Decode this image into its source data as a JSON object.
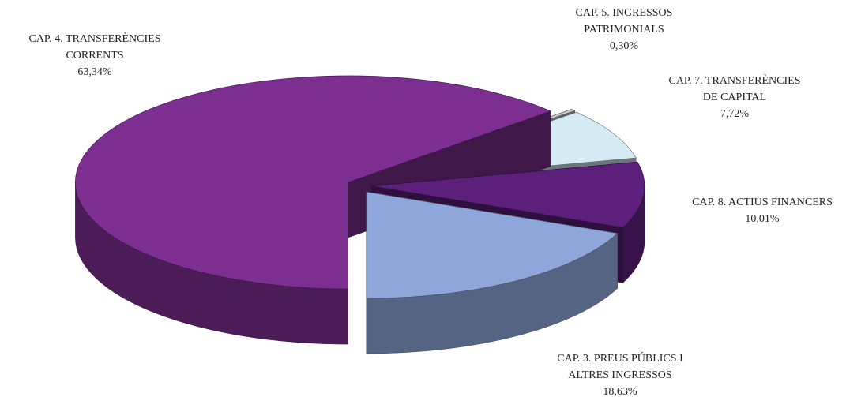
{
  "chart_data": {
    "type": "pie3d",
    "categories": [
      [
        "CAP. 4. TRANSFERÈNCIES",
        "CORRENTS"
      ],
      [
        "CAP. 5. INGRESSOS",
        "PATRIMONIALS"
      ],
      [
        "CAP. 7. TRANSFERÈNCIES",
        "DE CAPITAL"
      ],
      [
        "CAP. 8. ACTIUS FINANCERS"
      ],
      [
        "CAP. 3. PREUS PÚBLICS I",
        "ALTRES INGRESSOS"
      ]
    ],
    "values": [
      63.34,
      0.3,
      7.72,
      10.01,
      18.63
    ],
    "value_labels": [
      "63,34%",
      "0,30%",
      "7,72%",
      "10,01%",
      "18,63%"
    ],
    "colors": [
      "#7d2f91",
      "#c8c8c8",
      "#d6ecf5",
      "#5c1f7c",
      "#8fa6db"
    ]
  }
}
